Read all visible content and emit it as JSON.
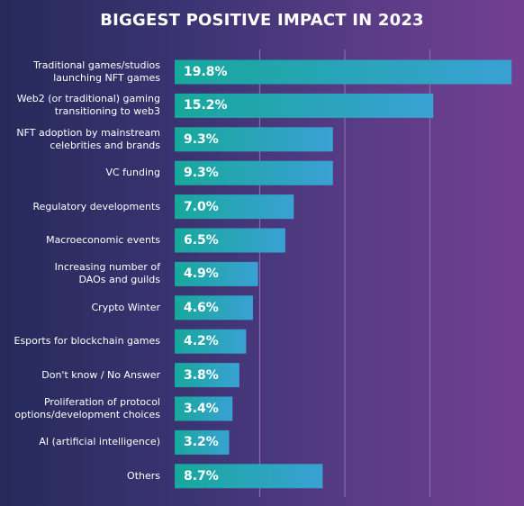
{
  "colors": {
    "bar_start": "#17a89b",
    "bar_end": "#3aa1d4",
    "background_left": "#262a5a",
    "background_right": "#733f92",
    "gridline": "#8a6aac"
  },
  "chart_data": {
    "type": "bar",
    "orientation": "horizontal",
    "title": "BIGGEST POSITIVE IMPACT IN 2023",
    "categories": [
      "Traditional games/studios\nlaunching NFT games",
      "Web2 (or traditional) gaming\ntransitioning to web3",
      "NFT adoption by mainstream\ncelebrities and brands",
      "VC funding",
      "Regulatory developments",
      "Macroeconomic events",
      "Increasing number of\nDAOs and guilds",
      "Crypto Winter",
      "Esports for blockchain games",
      "Don't know / No Answer",
      "Proliferation of protocol\noptions/development choices",
      "AI (artificial intelligence)",
      "Others"
    ],
    "values": [
      19.8,
      15.2,
      9.3,
      9.3,
      7.0,
      6.5,
      4.9,
      4.6,
      4.2,
      3.8,
      3.4,
      3.2,
      8.7
    ],
    "value_labels": [
      "19.8%",
      "15.2%",
      "9.3%",
      "9.3%",
      "7.0%",
      "6.5%",
      "4.9%",
      "4.6%",
      "4.2%",
      "3.8%",
      "3.4%",
      "3.2%",
      "8.7%"
    ],
    "xlim": [
      0,
      20
    ],
    "x_gridlines": [
      0,
      5,
      10,
      15,
      20
    ],
    "grid": true,
    "xlabel": "",
    "ylabel": ""
  }
}
